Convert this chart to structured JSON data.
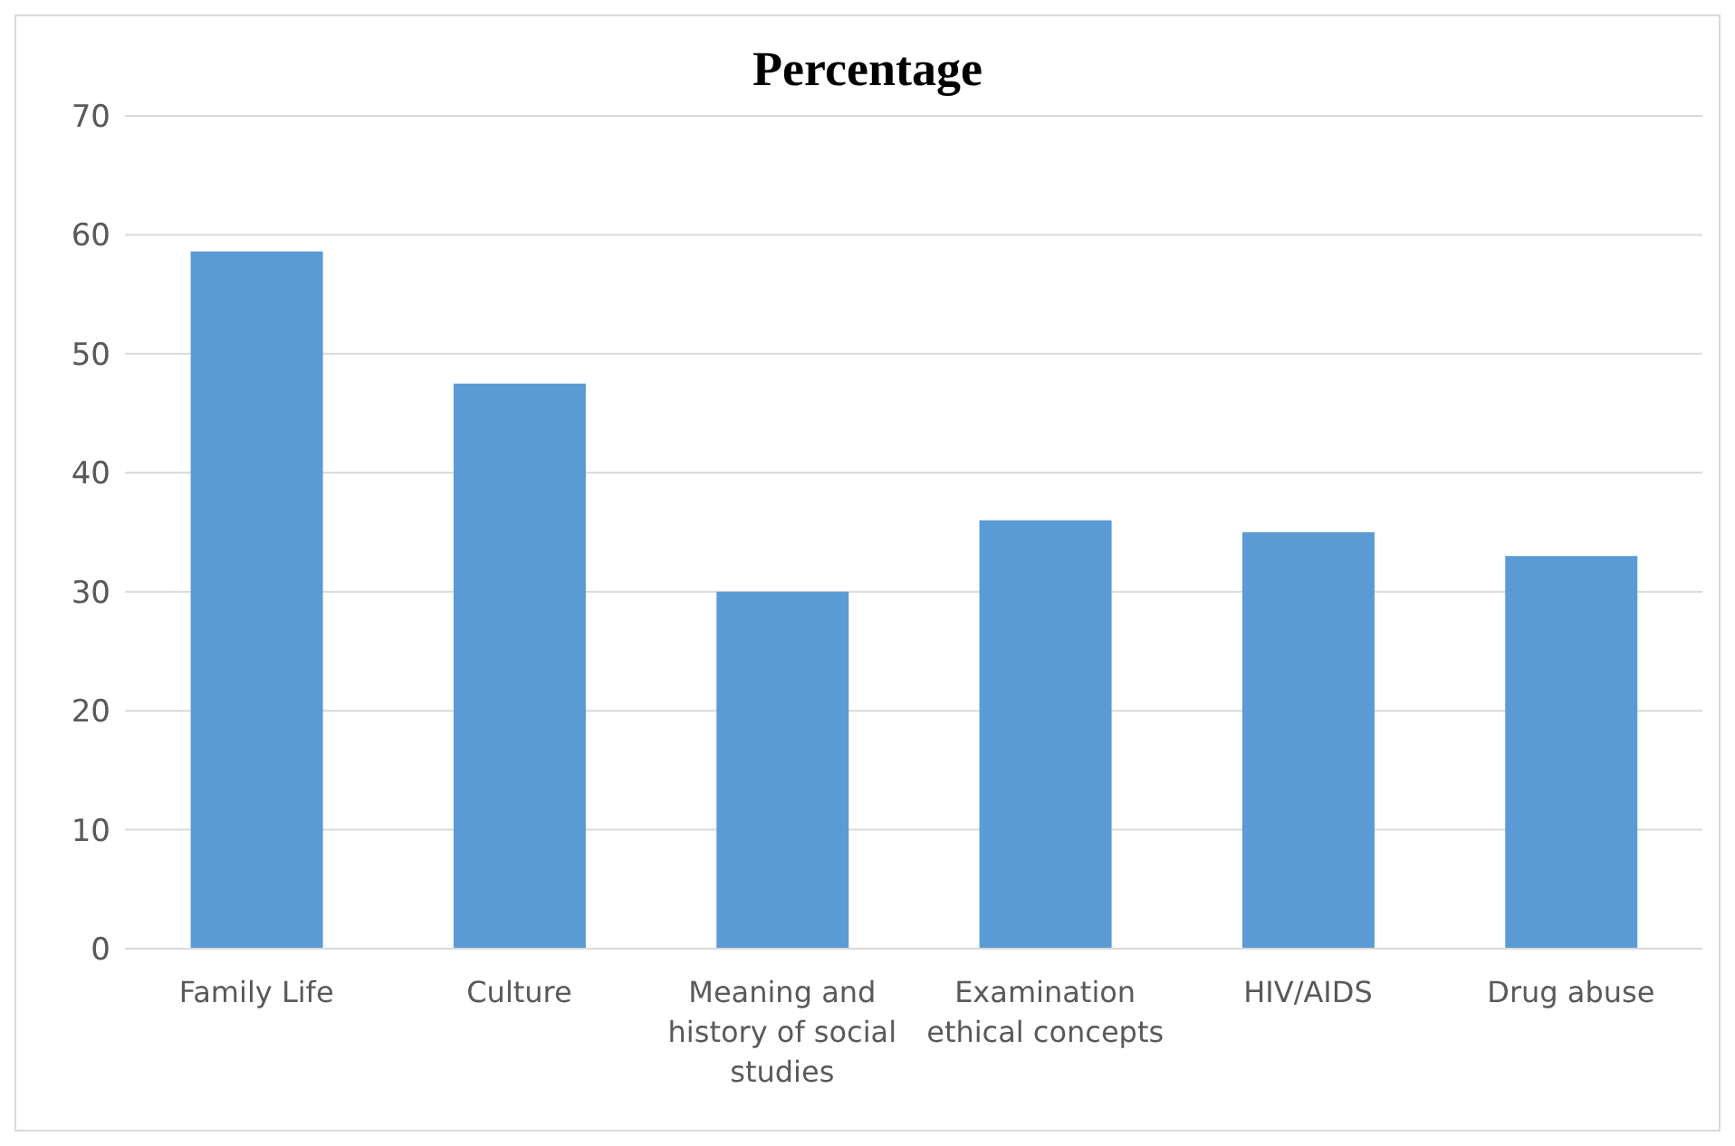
{
  "chart_data": {
    "type": "bar",
    "title": "Percentage",
    "categories": [
      "Family Life",
      "Culture",
      "Meaning and history of social studies",
      "Examination ethical concepts",
      "HIV/AIDS",
      "Drug abuse"
    ],
    "values": [
      58.6,
      47.5,
      30,
      36,
      35,
      33
    ],
    "color": "#5b9bd5",
    "ylim": [
      0,
      70
    ],
    "yticks": [
      0,
      10,
      20,
      30,
      40,
      50,
      60,
      70
    ],
    "grid": "y"
  }
}
